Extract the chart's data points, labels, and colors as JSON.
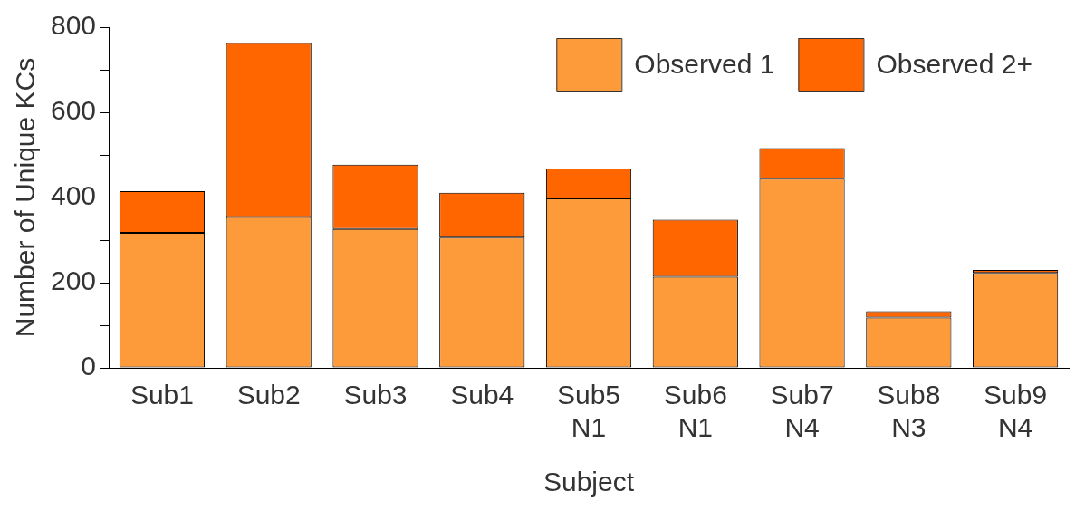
{
  "chart_data": {
    "type": "bar",
    "stacked": true,
    "xlabel": "Subject",
    "ylabel": "Number of Unique KCs",
    "categories": [
      "Sub1",
      "Sub2",
      "Sub3",
      "Sub4",
      "Sub5\nN1",
      "Sub6\nN1",
      "Sub7\nN4",
      "Sub8\nN3",
      "Sub9\nN4"
    ],
    "series": [
      {
        "name": "Observed 1",
        "color": "#fd9a3a",
        "values": [
          317,
          354,
          326,
          306,
          398,
          214,
          444,
          118,
          223
        ]
      },
      {
        "name": "Observed 2+",
        "color": "#ff6600",
        "values": [
          98,
          409,
          151,
          105,
          70,
          134,
          72,
          15,
          7
        ]
      }
    ],
    "ylim": [
      0,
      800
    ],
    "yticks": [
      0,
      {
        "value": 100,
        "label": null
      },
      200,
      {
        "value": 300,
        "label": null
      },
      400,
      {
        "value": 500,
        "label": null
      },
      600,
      {
        "value": 700,
        "label": null
      },
      800
    ],
    "legend": "top right"
  }
}
